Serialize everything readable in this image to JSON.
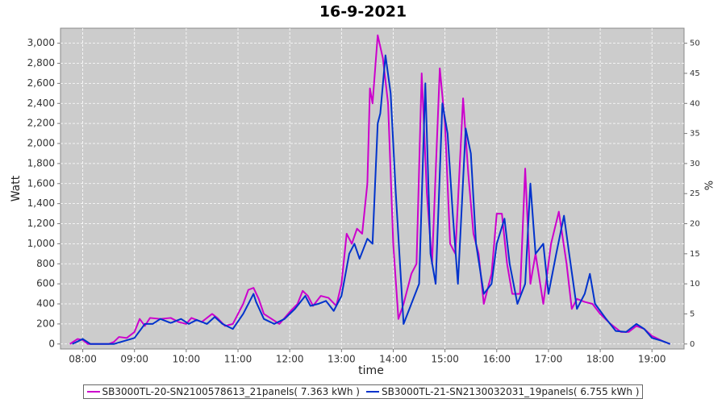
{
  "chart_data": {
    "type": "line",
    "title": "16-9-2021",
    "xlabel": "time",
    "ylabel": "Watt",
    "y2label": "%",
    "xlim": [
      7.57,
      19.62
    ],
    "xticks": [
      {
        "value": 8,
        "label": "08:00"
      },
      {
        "value": 9,
        "label": "09:00"
      },
      {
        "value": 10,
        "label": "10:00"
      },
      {
        "value": 11,
        "label": "11:00"
      },
      {
        "value": 12,
        "label": "12:00"
      },
      {
        "value": 13,
        "label": "13:00"
      },
      {
        "value": 14,
        "label": "14:00"
      },
      {
        "value": 15,
        "label": "15:00"
      },
      {
        "value": 16,
        "label": "16:00"
      },
      {
        "value": 17,
        "label": "17:00"
      },
      {
        "value": 18,
        "label": "18:00"
      },
      {
        "value": 19,
        "label": "19:00"
      }
    ],
    "ylim": [
      -50,
      3150
    ],
    "yticks": [
      0,
      200,
      400,
      600,
      800,
      {
        "value": 1000,
        "label": "1,000"
      },
      {
        "value": 1200,
        "label": "1,200"
      },
      {
        "value": 1400,
        "label": "1,400"
      },
      {
        "value": 1600,
        "label": "1,600"
      },
      {
        "value": 1800,
        "label": "1,800"
      },
      {
        "value": 2000,
        "label": "2,000"
      },
      {
        "value": 2200,
        "label": "2,200"
      },
      {
        "value": 2400,
        "label": "2,400"
      },
      {
        "value": 2600,
        "label": "2,600"
      },
      {
        "value": 2800,
        "label": "2,800"
      },
      {
        "value": 3000,
        "label": "3,000"
      }
    ],
    "y2lim": [
      -0.833,
      52.5
    ],
    "y2ticks": [
      0,
      5,
      10,
      15,
      20,
      25,
      30,
      35,
      40,
      45,
      50
    ],
    "grid": true,
    "series": [
      {
        "name": "SB3000TL-20-SN2100578613_21panels( 7.363 kWh )",
        "color": "#cc00cc",
        "x": [
          7.75,
          7.9,
          8.0,
          8.1,
          8.3,
          8.5,
          8.6,
          8.7,
          8.85,
          9.0,
          9.1,
          9.2,
          9.3,
          9.5,
          9.7,
          9.85,
          10.0,
          10.1,
          10.3,
          10.5,
          10.6,
          10.75,
          10.9,
          11.1,
          11.2,
          11.3,
          11.4,
          11.5,
          11.65,
          11.8,
          12.0,
          12.15,
          12.25,
          12.35,
          12.45,
          12.6,
          12.75,
          12.9,
          13.0,
          13.1,
          13.2,
          13.3,
          13.4,
          13.5,
          13.55,
          13.6,
          13.7,
          13.8,
          13.9,
          14.0,
          14.1,
          14.2,
          14.35,
          14.45,
          14.55,
          14.65,
          14.75,
          14.9,
          15.0,
          15.1,
          15.2,
          15.35,
          15.45,
          15.55,
          15.65,
          15.75,
          15.9,
          16.0,
          16.1,
          16.2,
          16.3,
          16.45,
          16.55,
          16.65,
          16.75,
          16.9,
          17.05,
          17.2,
          17.35,
          17.45,
          17.55,
          17.7,
          17.85,
          18.0,
          18.2,
          18.4,
          18.55,
          18.7,
          18.85,
          19.0,
          19.2,
          19.35
        ],
        "values": [
          0,
          50,
          40,
          0,
          0,
          0,
          20,
          70,
          60,
          120,
          250,
          180,
          260,
          250,
          260,
          220,
          200,
          260,
          220,
          300,
          260,
          180,
          200,
          400,
          540,
          560,
          450,
          300,
          250,
          200,
          320,
          400,
          530,
          480,
          380,
          480,
          460,
          380,
          600,
          1100,
          1000,
          1150,
          1100,
          1600,
          2550,
          2400,
          3080,
          2850,
          2400,
          1000,
          250,
          400,
          700,
          800,
          2700,
          1500,
          800,
          2750,
          2200,
          1000,
          900,
          2450,
          1700,
          1100,
          900,
          400,
          700,
          1300,
          1300,
          800,
          500,
          500,
          1750,
          600,
          900,
          400,
          1000,
          1320,
          800,
          350,
          450,
          420,
          400,
          300,
          200,
          120,
          120,
          180,
          150,
          80,
          30,
          0
        ]
      },
      {
        "name": "SB3000TL-21-SN2130032031_19panels( 6.755 kWh )",
        "color": "#0033cc",
        "x": [
          7.8,
          8.0,
          8.15,
          8.6,
          8.8,
          9.0,
          9.2,
          9.35,
          9.5,
          9.7,
          9.9,
          10.05,
          10.2,
          10.4,
          10.55,
          10.7,
          10.9,
          11.1,
          11.3,
          11.35,
          11.5,
          11.7,
          11.9,
          12.1,
          12.3,
          12.4,
          12.55,
          12.7,
          12.85,
          13.0,
          13.15,
          13.25,
          13.35,
          13.5,
          13.6,
          13.7,
          13.75,
          13.85,
          13.95,
          14.05,
          14.2,
          14.35,
          14.5,
          14.62,
          14.72,
          14.82,
          14.95,
          15.05,
          15.15,
          15.25,
          15.4,
          15.5,
          15.6,
          15.75,
          15.9,
          16.0,
          16.15,
          16.25,
          16.4,
          16.55,
          16.65,
          16.75,
          16.9,
          17.0,
          17.15,
          17.3,
          17.4,
          17.55,
          17.7,
          17.8,
          17.9,
          18.1,
          18.3,
          18.5,
          18.7,
          18.85,
          19.0,
          19.2,
          19.35
        ],
        "values": [
          0,
          50,
          0,
          0,
          30,
          60,
          200,
          200,
          250,
          210,
          250,
          200,
          240,
          200,
          270,
          200,
          150,
          300,
          500,
          420,
          250,
          200,
          250,
          350,
          480,
          380,
          400,
          430,
          330,
          480,
          900,
          1000,
          850,
          1050,
          1000,
          2200,
          2300,
          2880,
          2500,
          1500,
          200,
          400,
          600,
          2600,
          900,
          600,
          2400,
          2100,
          1300,
          600,
          2150,
          1900,
          1000,
          500,
          600,
          1000,
          1250,
          800,
          400,
          600,
          1600,
          900,
          1000,
          500,
          900,
          1280,
          900,
          350,
          500,
          700,
          400,
          260,
          130,
          120,
          200,
          150,
          60,
          30,
          0
        ]
      }
    ]
  }
}
